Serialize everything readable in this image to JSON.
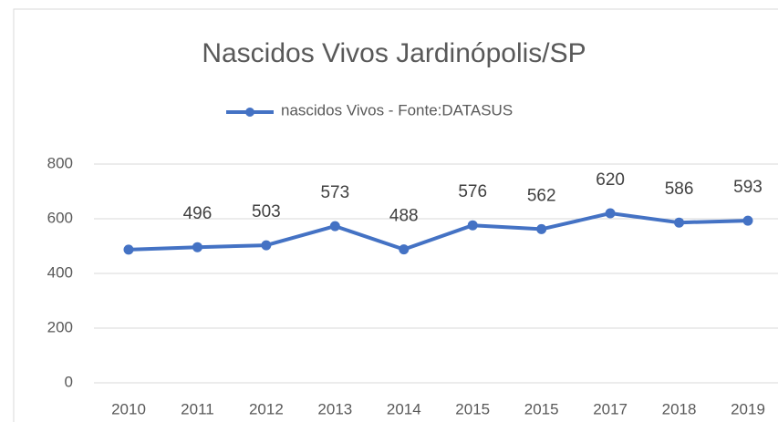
{
  "chart_data": {
    "type": "line",
    "title": "Nascidos Vivos Jardinópolis/SP",
    "categories": [
      "2010",
      "2011",
      "2012",
      "2013",
      "2014",
      "2015",
      "2015",
      "2017",
      "2018",
      "2019"
    ],
    "series": [
      {
        "name": "nascidos Vivos - Fonte:DATASUS",
        "color": "#4472c4",
        "values": [
          487,
          496,
          503,
          573,
          488,
          576,
          562,
          620,
          586,
          593
        ],
        "value_labels": [
          null,
          "496",
          "503",
          "573",
          "488",
          "576",
          "562",
          "620",
          "586",
          "593"
        ]
      }
    ],
    "ylim": [
      0,
      800
    ],
    "yticks": [
      0,
      200,
      400,
      600,
      800
    ],
    "grid": true,
    "legend": "top"
  }
}
